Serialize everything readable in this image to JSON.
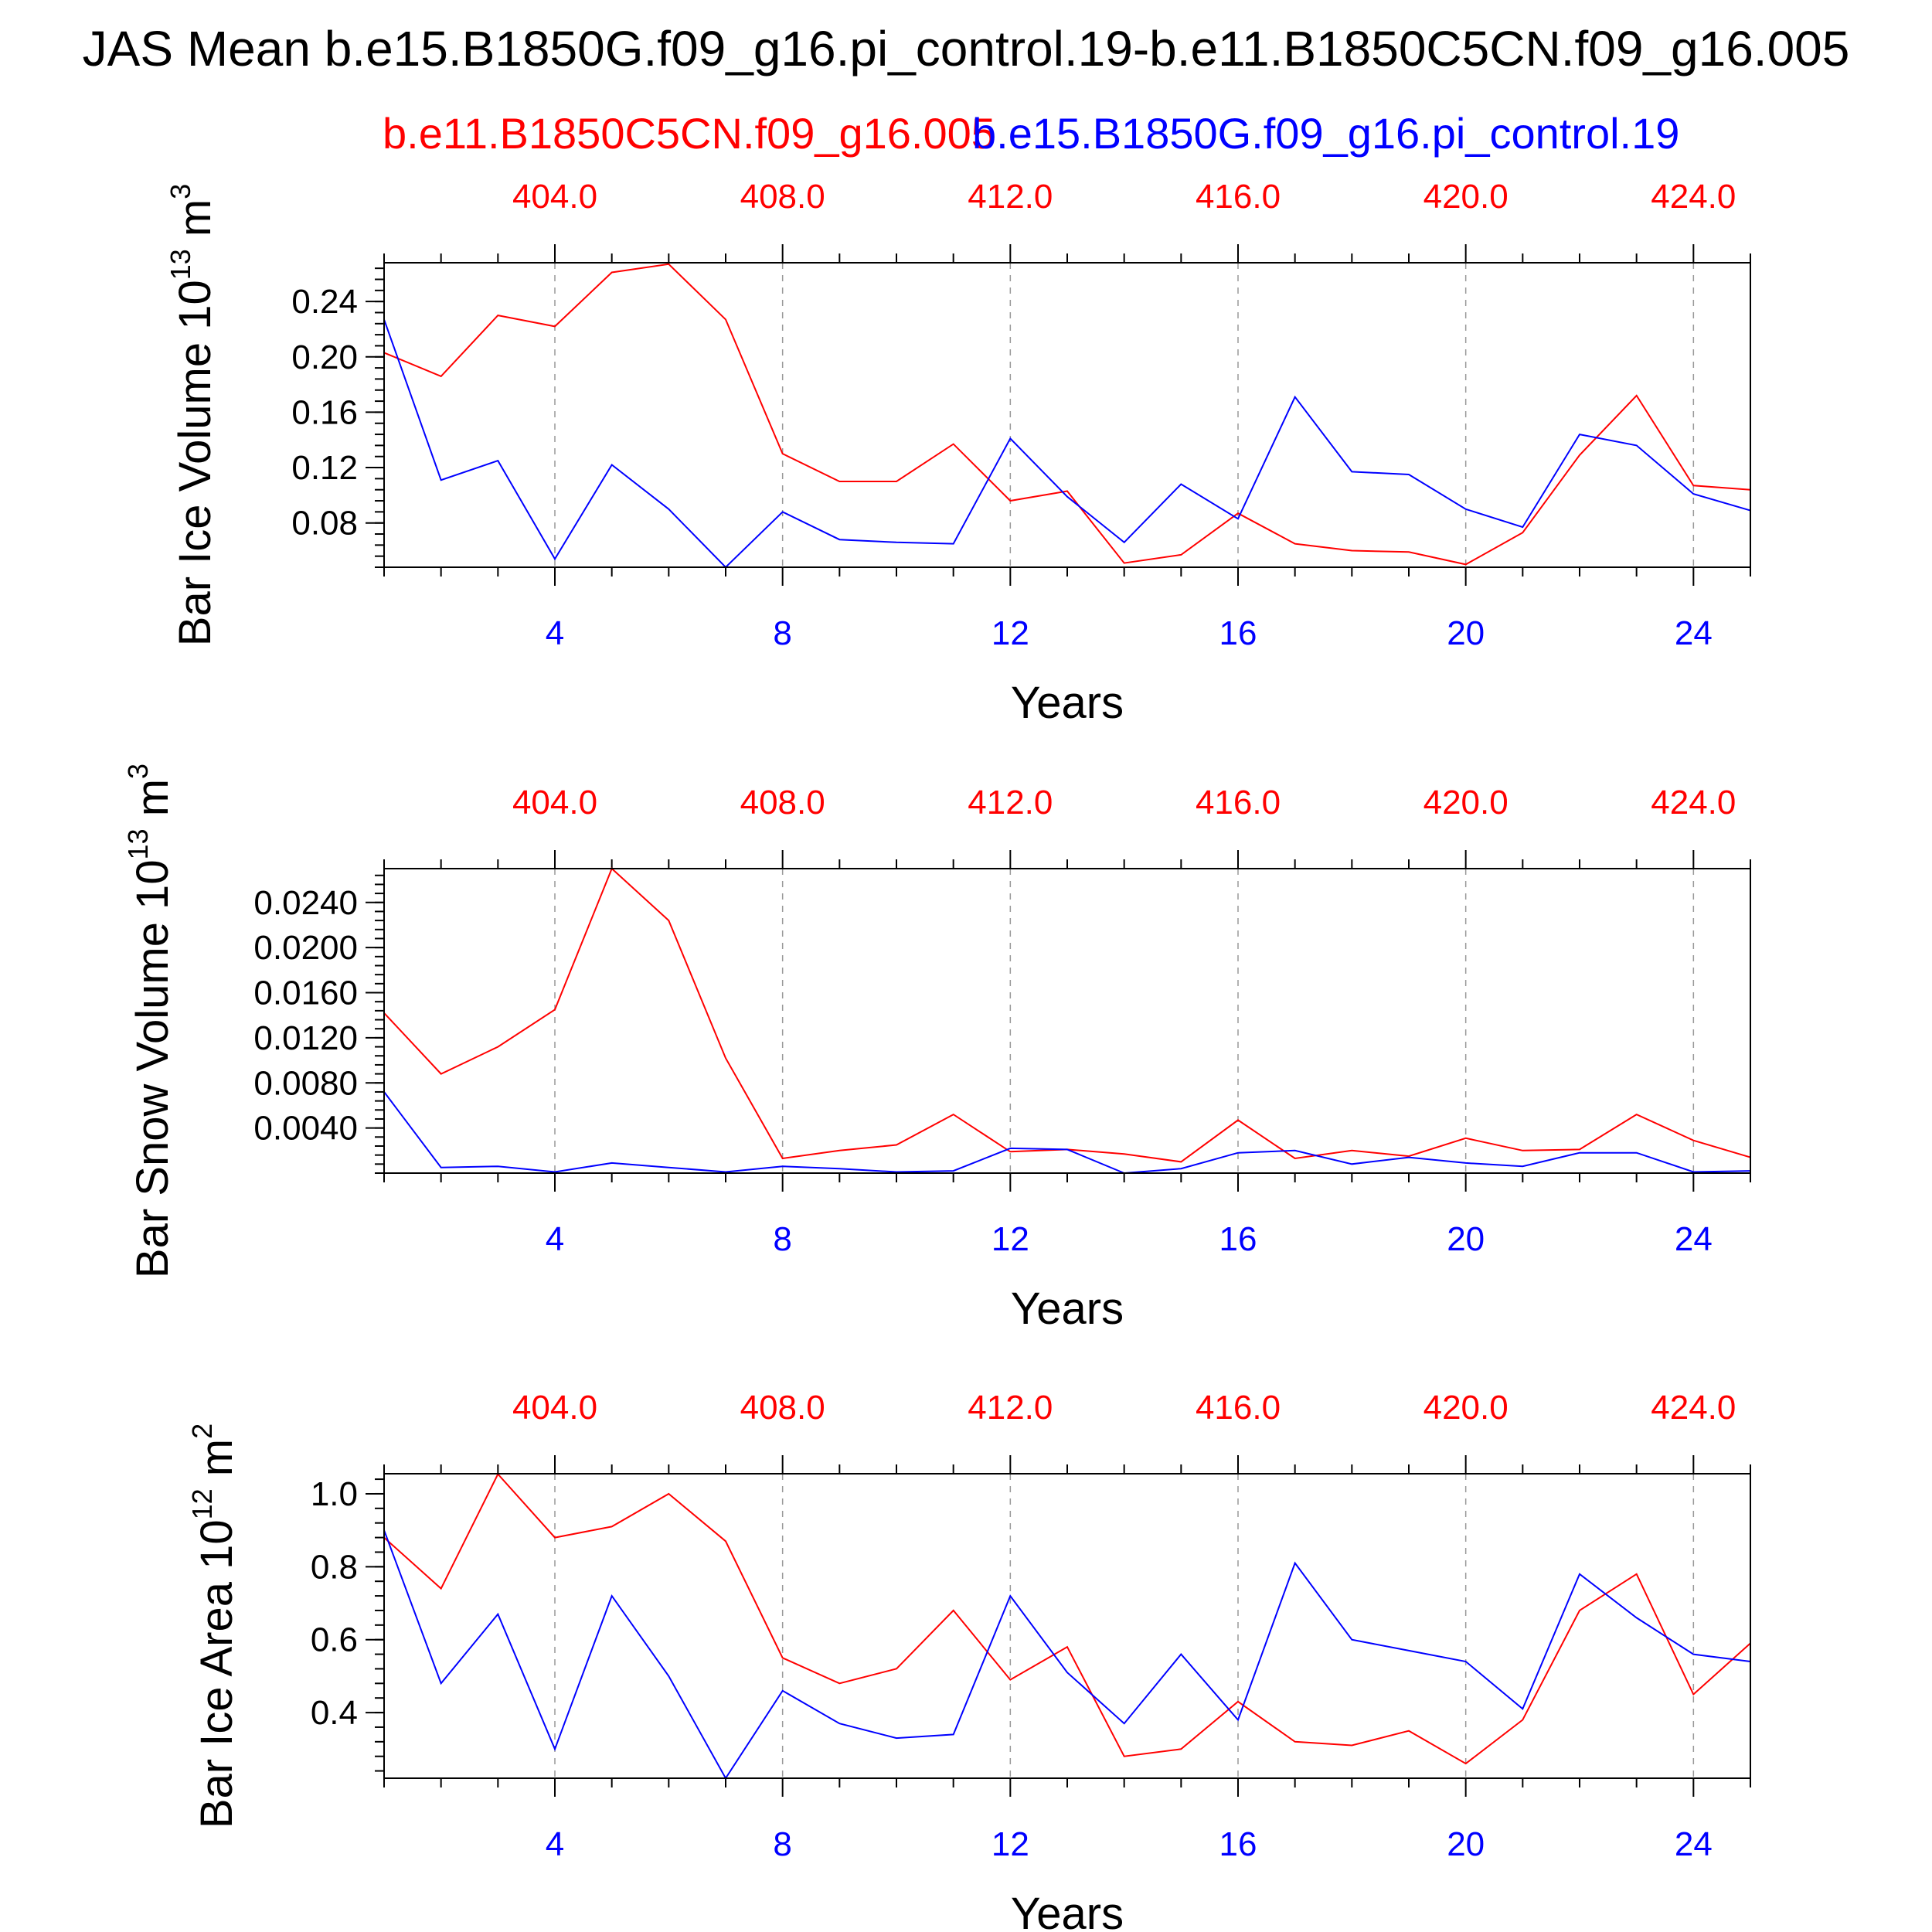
{
  "title": "JAS Mean b.e15.B1850G.f09_g16.pi_control.19-b.e11.B1850C5CN.f09_g16.005",
  "subtitle_red": "b.e11.B1850C5CN.f09_g16.005",
  "subtitle_blue": "b.e15.B1850G.f09_g16.pi_control.19",
  "colors": {
    "case_red": "#ff0000",
    "case_blue": "#0000ff",
    "axis": "#000000",
    "grid": "#999999"
  },
  "chart_data": [
    {
      "type": "line",
      "ylabel": "Bar Ice Volume 10",
      "ylabel_exp": "13",
      "ylabel_unit": " m",
      "ylabel_unit_exp": "3",
      "xlabel": "Years",
      "xlim": [
        1,
        25
      ],
      "ylim": [
        0.048,
        0.268
      ],
      "yticks": [
        0.08,
        0.12,
        0.16,
        0.2,
        0.24
      ],
      "ytick_labels": [
        "0.08",
        "0.12",
        "0.16",
        "0.20",
        "0.24"
      ],
      "yminor_step": 0.008,
      "x": [
        1,
        2,
        3,
        4,
        5,
        6,
        7,
        8,
        9,
        10,
        11,
        12,
        13,
        14,
        15,
        16,
        17,
        18,
        19,
        20,
        21,
        22,
        23,
        24,
        25
      ],
      "xticks_bottom": [
        "4",
        "8",
        "12",
        "16",
        "20",
        "24"
      ],
      "xticks_top": [
        "404.0",
        "408.0",
        "412.0",
        "416.0",
        "420.0",
        "424.0"
      ],
      "series": [
        {
          "color": "#ff0000",
          "values": [
            0.203,
            0.186,
            0.23,
            0.222,
            0.261,
            0.267,
            0.227,
            0.13,
            0.11,
            0.11,
            0.137,
            0.096,
            0.103,
            0.051,
            0.057,
            0.087,
            0.065,
            0.06,
            0.059,
            0.05,
            0.073,
            0.129,
            0.172,
            0.107,
            0.104
          ]
        },
        {
          "color": "#0000ff",
          "values": [
            0.227,
            0.111,
            0.125,
            0.054,
            0.122,
            0.09,
            0.048,
            0.088,
            0.068,
            0.066,
            0.065,
            0.141,
            0.099,
            0.066,
            0.108,
            0.083,
            0.171,
            0.117,
            0.115,
            0.09,
            0.077,
            0.144,
            0.136,
            0.101,
            0.089
          ]
        }
      ]
    },
    {
      "type": "line",
      "ylabel": "Bar Snow Volume 10",
      "ylabel_exp": "13",
      "ylabel_unit": " m",
      "ylabel_unit_exp": "3",
      "xlabel": "Years",
      "xlim": [
        1,
        25
      ],
      "ylim": [
        0.0,
        0.027
      ],
      "yticks": [
        0.004,
        0.008,
        0.012,
        0.016,
        0.02,
        0.024
      ],
      "ytick_labels": [
        "0.0040",
        "0.0080",
        "0.0120",
        "0.0160",
        "0.0200",
        "0.0240"
      ],
      "yminor_step": 0.0008,
      "x": [
        1,
        2,
        3,
        4,
        5,
        6,
        7,
        8,
        9,
        10,
        11,
        12,
        13,
        14,
        15,
        16,
        17,
        18,
        19,
        20,
        21,
        22,
        23,
        24,
        25
      ],
      "xticks_bottom": [
        "4",
        "8",
        "12",
        "16",
        "20",
        "24"
      ],
      "xticks_top": [
        "404.0",
        "408.0",
        "412.0",
        "416.0",
        "420.0",
        "424.0"
      ],
      "series": [
        {
          "color": "#ff0000",
          "values": [
            0.0142,
            0.0088,
            0.0112,
            0.0145,
            0.027,
            0.0224,
            0.0102,
            0.0013,
            0.002,
            0.0025,
            0.0052,
            0.0019,
            0.0021,
            0.0017,
            0.001,
            0.0047,
            0.0013,
            0.002,
            0.0015,
            0.0031,
            0.002,
            0.0021,
            0.0052,
            0.0029,
            0.0014
          ]
        },
        {
          "color": "#0000ff",
          "values": [
            0.0072,
            0.0005,
            0.0006,
            0.0001,
            0.0009,
            0.0005,
            0.0001,
            0.0006,
            0.0004,
            0.0001,
            0.0002,
            0.0022,
            0.0021,
            0.0,
            0.0004,
            0.0018,
            0.002,
            0.0008,
            0.0014,
            0.0009,
            0.0006,
            0.0018,
            0.0018,
            0.0001,
            0.0002
          ]
        }
      ]
    },
    {
      "type": "line",
      "ylabel": "Bar Ice Area 10",
      "ylabel_exp": "12",
      "ylabel_unit": " m",
      "ylabel_unit_exp": "2",
      "xlabel": "Years",
      "xlim": [
        1,
        25
      ],
      "ylim": [
        0.22,
        1.055
      ],
      "yticks": [
        0.4,
        0.6,
        0.8,
        1.0
      ],
      "ytick_labels": [
        "0.4",
        "0.6",
        "0.8",
        "1.0"
      ],
      "yminor_step": 0.04,
      "x": [
        1,
        2,
        3,
        4,
        5,
        6,
        7,
        8,
        9,
        10,
        11,
        12,
        13,
        14,
        15,
        16,
        17,
        18,
        19,
        20,
        21,
        22,
        23,
        24,
        25
      ],
      "xticks_bottom": [
        "4",
        "8",
        "12",
        "16",
        "20",
        "24"
      ],
      "xticks_top": [
        "404.0",
        "408.0",
        "412.0",
        "416.0",
        "420.0",
        "424.0"
      ],
      "series": [
        {
          "color": "#ff0000",
          "values": [
            0.88,
            0.74,
            1.054,
            0.88,
            0.91,
            1.0,
            0.87,
            0.55,
            0.48,
            0.52,
            0.68,
            0.49,
            0.58,
            0.28,
            0.3,
            0.43,
            0.32,
            0.31,
            0.35,
            0.26,
            0.38,
            0.68,
            0.78,
            0.45,
            0.59
          ]
        },
        {
          "color": "#0000ff",
          "values": [
            0.9,
            0.48,
            0.67,
            0.3,
            0.72,
            0.5,
            0.22,
            0.46,
            0.37,
            0.33,
            0.34,
            0.72,
            0.51,
            0.37,
            0.56,
            0.38,
            0.81,
            0.6,
            0.57,
            0.54,
            0.41,
            0.78,
            0.66,
            0.56,
            0.54
          ]
        }
      ]
    }
  ]
}
